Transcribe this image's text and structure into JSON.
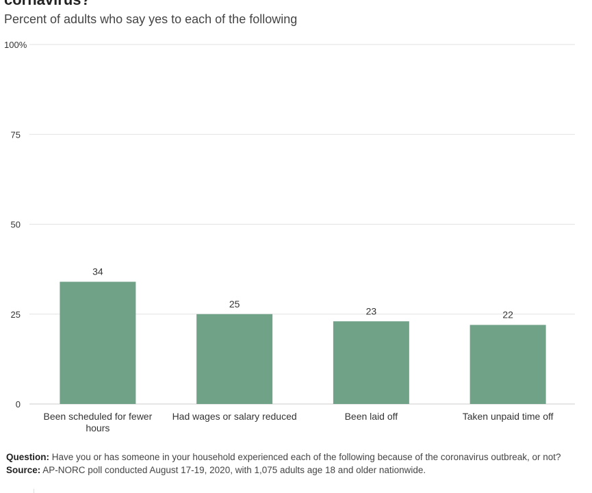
{
  "header": {
    "title": "cornavirus?",
    "subtitle": "Percent of adults who say yes to each of the following"
  },
  "colors": {
    "bar": "#6fa287",
    "grid": "#e2e2e2",
    "axis": "#cccccc",
    "text": "#222222"
  },
  "chart_data": {
    "type": "bar",
    "title": "cornavirus?",
    "subtitle": "Percent of adults who say yes to each of the following",
    "categories": [
      "Been scheduled for fewer hours",
      "Had wages or salary reduced",
      "Been laid off",
      "Taken unpaid time off"
    ],
    "category_lines": [
      [
        "Been scheduled for fewer",
        "hours"
      ],
      [
        "Had wages or salary reduced"
      ],
      [
        "Been laid off"
      ],
      [
        "Taken unpaid time off"
      ]
    ],
    "values": [
      34,
      25,
      23,
      22
    ],
    "ylim": [
      0,
      100
    ],
    "yticks": [
      0,
      25,
      50,
      75,
      100
    ],
    "ytick_labels": [
      "0",
      "25",
      "50",
      "75",
      "100%"
    ],
    "xlabel": "",
    "ylabel": "",
    "grid": true,
    "legend": "none"
  },
  "footer": {
    "question_label": "Question:",
    "question_text": "Have you or has someone in your household experienced each of the following because of the coronavirus outbreak, or not?",
    "source_label": "Source:",
    "source_text": "AP-NORC poll conducted August 17-19, 2020, with 1,075 adults age 18 and older nationwide."
  }
}
